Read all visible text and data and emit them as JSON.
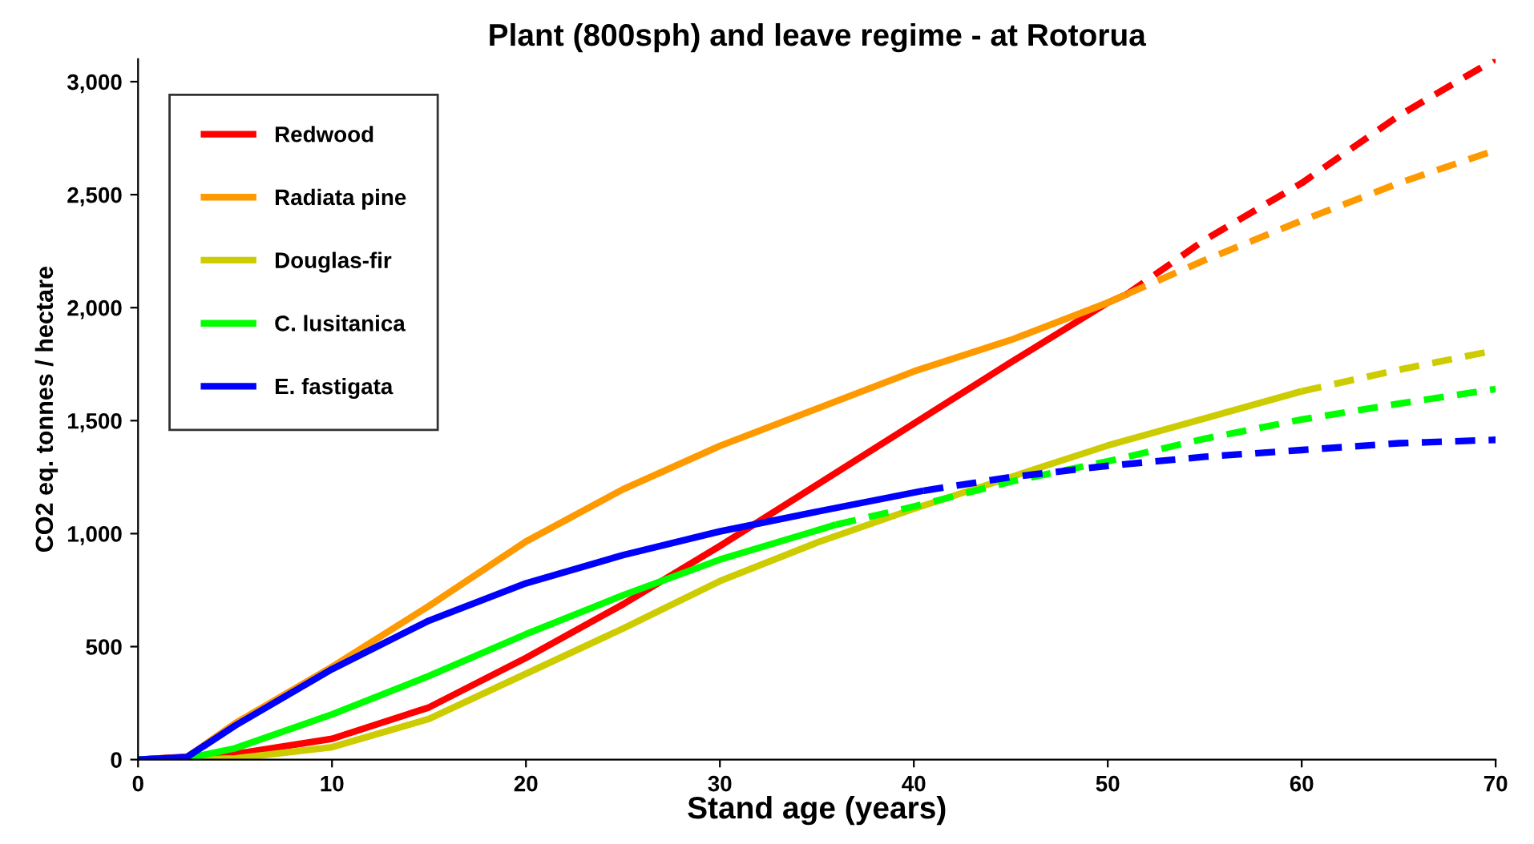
{
  "chart_data": {
    "type": "line",
    "title": "Plant (800sph) and leave regime - at Rotorua",
    "xlabel": "Stand age (years)",
    "ylabel": "CO2 eq. tonnes / hectare",
    "xlim": [
      0,
      70
    ],
    "xticks": [
      0,
      10,
      20,
      30,
      40,
      50,
      60,
      70
    ],
    "ylim": [
      0,
      3100
    ],
    "yticks": [
      {
        "value": 0,
        "label": "0"
      },
      {
        "value": 500,
        "label": "500"
      },
      {
        "value": 1000,
        "label": "1,000"
      },
      {
        "value": 1500,
        "label": "1,500"
      },
      {
        "value": 2000,
        "label": "2,000"
      },
      {
        "value": 2500,
        "label": "2,500"
      },
      {
        "value": 3000,
        "label": "3,000"
      }
    ],
    "grid": false,
    "legend": "top left",
    "marker": "none",
    "series": [
      {
        "name": "Redwood",
        "color": "#ff0000",
        "line_style": "solid",
        "x": [
          0,
          5,
          10,
          15,
          20,
          25,
          30,
          35,
          40,
          45,
          50,
          51
        ],
        "values": [
          0,
          25,
          92,
          231,
          450,
          687,
          945,
          1216,
          1487,
          1758,
          2022,
          2060
        ]
      },
      {
        "name": "Radiata pine",
        "color": "#ff9900",
        "line_style": "solid",
        "x": [
          0,
          2.5,
          5,
          10,
          15,
          20,
          25,
          30,
          35,
          40,
          45,
          50,
          51
        ],
        "values": [
          0,
          10,
          160,
          410,
          680,
          965,
          1196,
          1388,
          1553,
          1718,
          1857,
          2022,
          2060
        ]
      },
      {
        "name": "Douglas-fir",
        "color": "#cccc00",
        "line_style": "solid",
        "x": [
          0,
          2.5,
          5,
          10,
          15,
          20,
          25,
          30,
          35,
          40,
          45,
          50,
          55,
          60
        ],
        "values": [
          0,
          0,
          5,
          55,
          180,
          380,
          580,
          790,
          960,
          1110,
          1250,
          1390,
          1510,
          1630
        ]
      },
      {
        "name": "C. lusitanica",
        "color": "#00ff00",
        "line_style": "solid",
        "x": [
          0,
          2.5,
          5,
          10,
          15,
          20,
          25,
          30,
          36
        ],
        "values": [
          0,
          5,
          50,
          200,
          370,
          555,
          727,
          885,
          1040
        ]
      },
      {
        "name": "E. fastigata",
        "color": "#0000ff",
        "line_style": "solid",
        "x": [
          0,
          2.5,
          5,
          10,
          15,
          20,
          25,
          30,
          35,
          40.5
        ],
        "values": [
          0,
          10,
          150,
          400,
          615,
          780,
          905,
          1010,
          1097,
          1190
        ]
      },
      {
        "color": "#ff0000",
        "line_style": "dashed",
        "x": [
          51,
          55,
          60,
          65,
          70
        ],
        "values": [
          2060,
          2300,
          2551,
          2849,
          3100
        ]
      },
      {
        "color": "#ff9900",
        "line_style": "dashed",
        "x": [
          51,
          55,
          60,
          65,
          70
        ],
        "values": [
          2060,
          2210,
          2385,
          2551,
          2697
        ]
      },
      {
        "color": "#cccc00",
        "line_style": "dashed",
        "x": [
          60,
          65,
          70
        ],
        "values": [
          1630,
          1725,
          1811
        ]
      },
      {
        "color": "#00ff00",
        "line_style": "dashed",
        "x": [
          36,
          40,
          45,
          50,
          55,
          60,
          65,
          70
        ],
        "values": [
          1040,
          1120,
          1230,
          1320,
          1420,
          1505,
          1575,
          1640
        ]
      },
      {
        "color": "#0000ff",
        "line_style": "dashed",
        "x": [
          40.5,
          45,
          50,
          55,
          60,
          65,
          70
        ],
        "values": [
          1190,
          1250,
          1300,
          1340,
          1370,
          1400,
          1415
        ]
      }
    ]
  }
}
